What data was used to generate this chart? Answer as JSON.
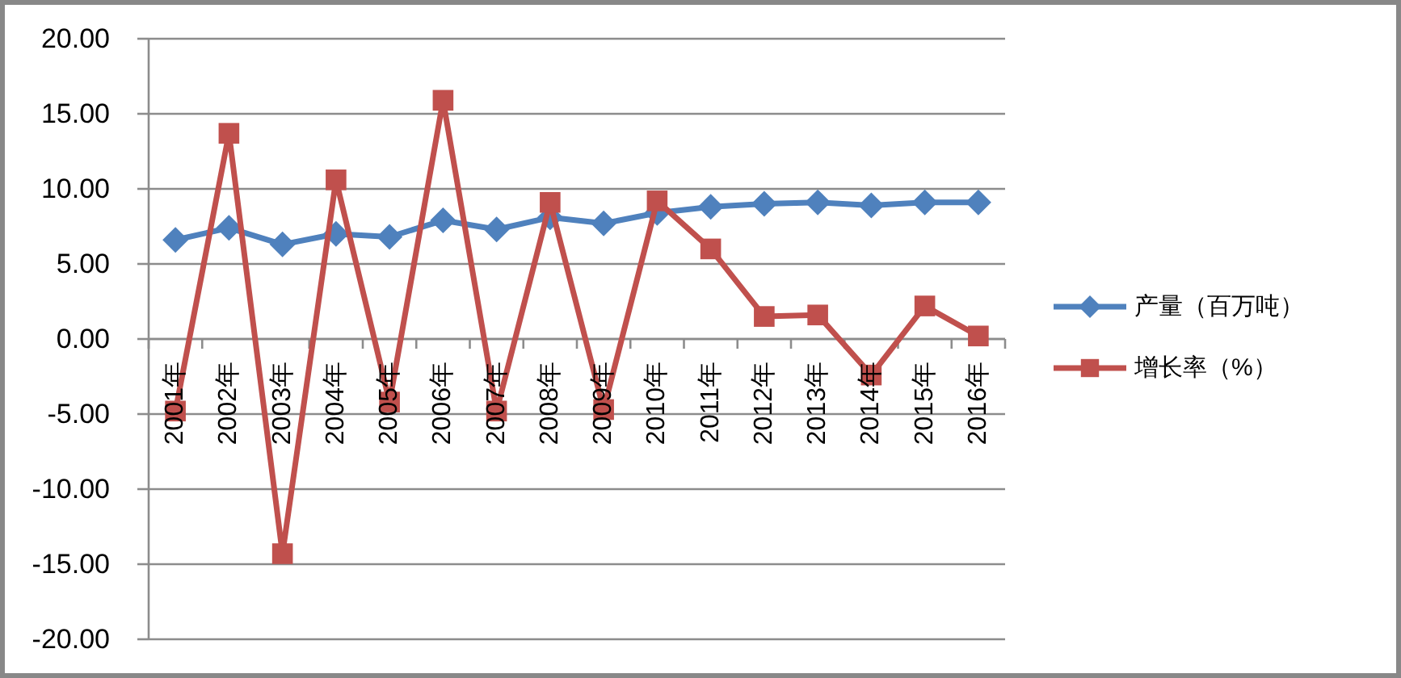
{
  "chart_data": {
    "type": "line",
    "categories": [
      "2001年",
      "2002年",
      "2003年",
      "2004年",
      "2005年",
      "2006年",
      "2007年",
      "2008年",
      "2009年",
      "2010年",
      "2011年",
      "2012年",
      "2013年",
      "2014年",
      "2015年",
      "2016年"
    ],
    "series": [
      {
        "name": "产量（百万吨）",
        "color": "#4f81bd",
        "marker": "diamond",
        "values": [
          6.6,
          7.4,
          6.3,
          7.0,
          6.8,
          7.9,
          7.3,
          8.1,
          7.7,
          8.4,
          8.8,
          9.0,
          9.1,
          8.9,
          9.1,
          9.1
        ]
      },
      {
        "name": "增长率（%）",
        "color": "#c0504d",
        "marker": "square",
        "values": [
          -4.8,
          13.7,
          -14.3,
          10.6,
          -4.2,
          15.9,
          -4.8,
          9.1,
          -4.7,
          9.2,
          6.0,
          1.5,
          1.6,
          -2.4,
          2.2,
          0.2
        ]
      }
    ],
    "ylim": [
      -20,
      20
    ],
    "yticks": [
      {
        "value": -20,
        "label": "-20.00"
      },
      {
        "value": -15,
        "label": "-15.00"
      },
      {
        "value": -10,
        "label": "-10.00"
      },
      {
        "value": -5,
        "label": "-5.00"
      },
      {
        "value": 0,
        "label": "0.00"
      },
      {
        "value": 5,
        "label": "5.00"
      },
      {
        "value": 10,
        "label": "10.00"
      },
      {
        "value": 15,
        "label": "15.00"
      },
      {
        "value": 20,
        "label": "20.00"
      }
    ],
    "grid": "y",
    "legend": "right"
  }
}
